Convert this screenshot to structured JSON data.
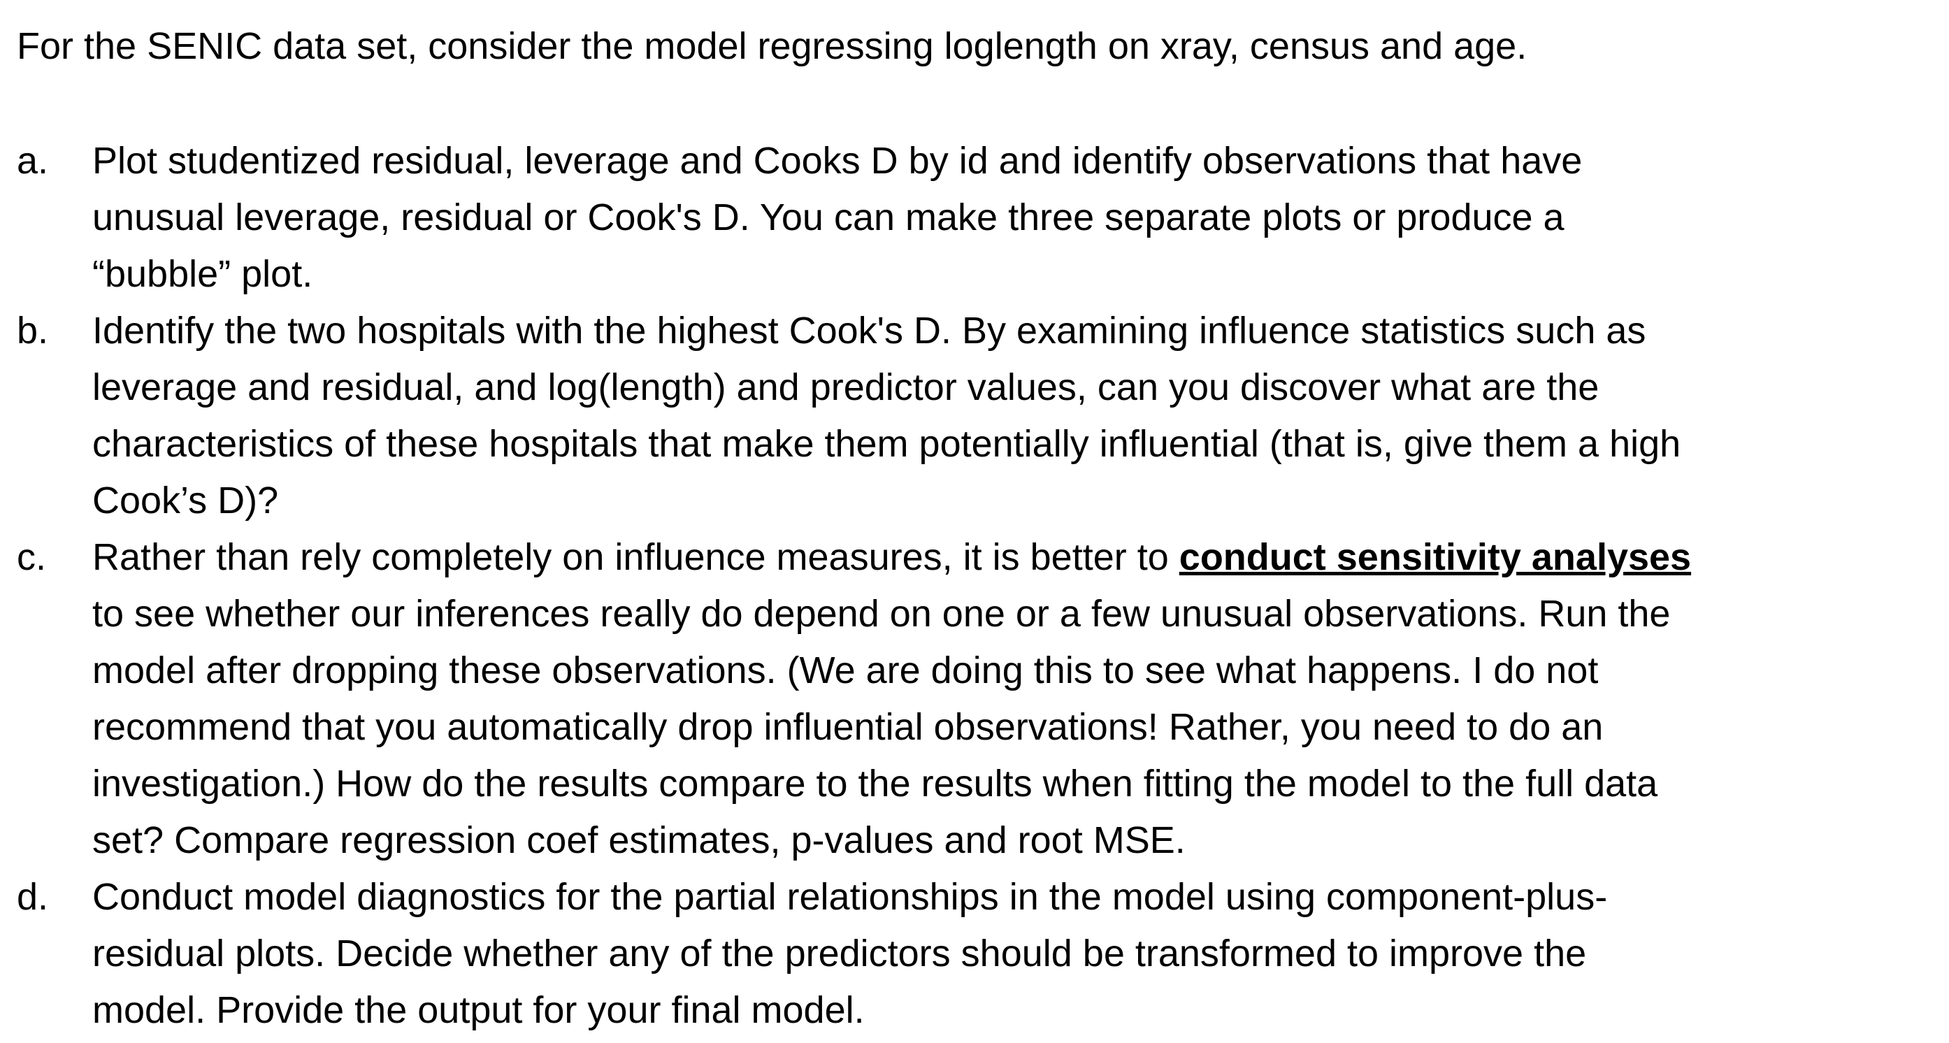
{
  "intro": "For the SENIC data set, consider the model regressing loglength on xray, census and age.",
  "questions": [
    {
      "letter": "a.",
      "lines": [
        "Plot studentized residual, leverage and Cooks D by id and identify observations that have",
        "unusual leverage, residual or Cook's D.  You can make three separate plots or produce a",
        "“bubble” plot."
      ]
    },
    {
      "letter": "b.",
      "lines": [
        "Identify the two hospitals with the highest Cook's D.  By examining influence statistics such as",
        "leverage and residual, and log(length) and predictor values, can you discover what are the",
        "characteristics of these hospitals that make them potentially influential (that is, give them a high",
        "Cook’s D)?"
      ]
    },
    {
      "letter": "c.",
      "line1_before": "Rather than rely completely on influence measures, it is better to ",
      "line1_emphasis": "conduct sensitivity analyses",
      "lines": [
        "to see whether our inferences really do depend on one or a few unusual observations. Run the",
        "model after dropping these observations. (We are doing this to see what happens. I do not",
        "recommend that you automatically drop influential observations! Rather, you need to do an",
        "investigation.)  How do the results compare to the results when fitting the model to the full data",
        "set?  Compare regression coef estimates, p-values and root MSE."
      ]
    },
    {
      "letter": "d.",
      "lines": [
        "Conduct model diagnostics for the partial relationships in the model using component-plus-",
        "residual plots. Decide whether any of the predictors should be transformed to improve the",
        "model. Provide the output for your final model."
      ]
    }
  ]
}
